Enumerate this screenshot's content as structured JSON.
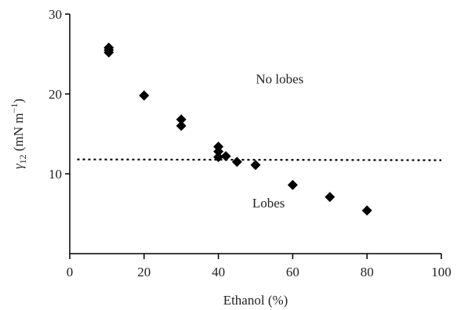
{
  "chart_data": {
    "type": "scatter",
    "xlabel": "Ethanol (%)",
    "ylabel": "γ12 (mN m⁻¹)",
    "ylabel_parts": {
      "symbol": "γ",
      "subscript": "12",
      "unit_prefix": " (mN m",
      "unit_exp": "−1",
      "unit_suffix": ")"
    },
    "xlim": [
      0,
      100
    ],
    "ylim": [
      0,
      30
    ],
    "xticks": [
      0,
      20,
      40,
      60,
      80,
      100
    ],
    "yticks": [
      10,
      20,
      30
    ],
    "grid": false,
    "marker": "diamond",
    "marker_color": "#000000",
    "series": [
      {
        "points": [
          {
            "x": 10.5,
            "y": 25.8
          },
          {
            "x": 10.5,
            "y": 25.5
          },
          {
            "x": 10.5,
            "y": 25.2
          },
          {
            "x": 20,
            "y": 19.8
          },
          {
            "x": 30,
            "y": 16.8
          },
          {
            "x": 30,
            "y": 16.0
          },
          {
            "x": 40,
            "y": 13.4
          },
          {
            "x": 40,
            "y": 12.8
          },
          {
            "x": 40,
            "y": 12.1
          },
          {
            "x": 42,
            "y": 12.2
          },
          {
            "x": 45,
            "y": 11.5
          },
          {
            "x": 50,
            "y": 11.1
          },
          {
            "x": 60,
            "y": 8.6
          },
          {
            "x": 70,
            "y": 7.1
          },
          {
            "x": 80,
            "y": 5.4
          }
        ]
      }
    ],
    "threshold_line": {
      "style": "dotted",
      "from": {
        "x": 2,
        "y": 11.8
      },
      "to": {
        "x": 100,
        "y": 11.7
      }
    },
    "annotations": [
      {
        "text": "No lobes",
        "x": 56.5,
        "y": 21.3
      },
      {
        "text": "Lobes",
        "x": 53.5,
        "y": 5.8
      }
    ]
  }
}
